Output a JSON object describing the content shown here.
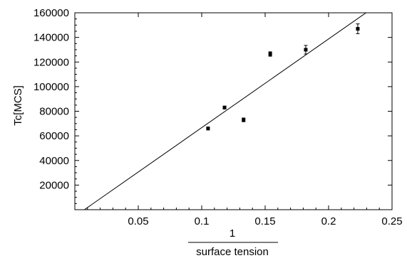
{
  "chart_data": {
    "type": "scatter",
    "ylabel": "Tc[MCS]",
    "xlabel": {
      "numerator": "1",
      "denominator": "surface tension"
    },
    "xlim": [
      0,
      0.25
    ],
    "ylim": [
      0,
      160000
    ],
    "xticks": [
      0.05,
      0.1,
      0.15,
      0.2,
      0.25
    ],
    "xtick_labels": [
      "0.05",
      "0.1",
      "0.15",
      "0.2",
      "0.25"
    ],
    "yticks": [
      20000,
      40000,
      60000,
      80000,
      100000,
      120000,
      140000,
      160000
    ],
    "ytick_labels": [
      "20000",
      "40000",
      "60000",
      "80000",
      "100000",
      "120000",
      "140000",
      "160000"
    ],
    "grid": false,
    "points": [
      {
        "x": 0.105,
        "y": 66000,
        "err": 1200
      },
      {
        "x": 0.118,
        "y": 83000,
        "err": 1200
      },
      {
        "x": 0.133,
        "y": 73000,
        "err": 1500
      },
      {
        "x": 0.154,
        "y": 126500,
        "err": 1800
      },
      {
        "x": 0.182,
        "y": 130000,
        "err": 3500
      },
      {
        "x": 0.223,
        "y": 147000,
        "err": 4000
      }
    ],
    "fit_line": {
      "x": [
        0.0075,
        0.2295
      ],
      "y": [
        0,
        160000
      ]
    },
    "colors": {
      "marks": "#000000",
      "background": "#ffffff"
    }
  }
}
